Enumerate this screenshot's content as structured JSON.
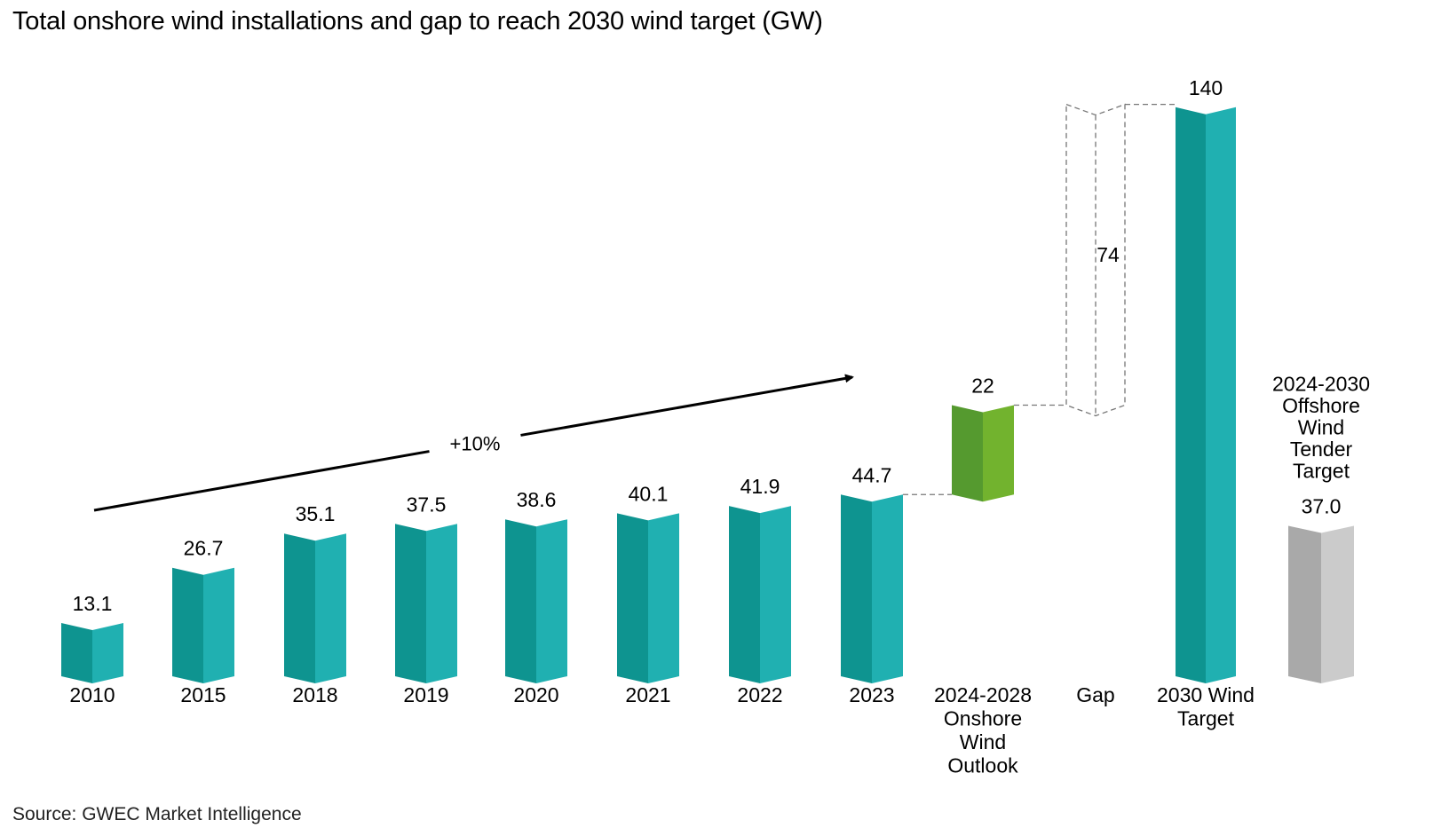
{
  "title": "Total onshore wind installations and gap to reach 2030 wind target (GW)",
  "source": "Source: GWEC Market Intelligence",
  "colors": {
    "teal_dark": "#0e9490",
    "teal_light": "#20b0b1",
    "green_dark": "#559a2f",
    "green_light": "#72b32e",
    "grey_dark": "#a9a9a9",
    "grey_light": "#cbcbcb",
    "gap_outline": "#777777"
  },
  "chart_data": {
    "type": "bar",
    "title": "Total onshore wind installations and gap to reach 2030 wind target (GW)",
    "unit": "GW",
    "categories": [
      "2010",
      "2015",
      "2018",
      "2019",
      "2020",
      "2021",
      "2022",
      "2023",
      "2024-2028 Onshore Wind Outlook",
      "Gap",
      "2030 Wind Target",
      "2024-2030 Offshore Wind Tender Target"
    ],
    "bars": [
      {
        "category": "2010",
        "label": [
          "2010"
        ],
        "value": 13.1,
        "value_label": "13.1",
        "kind": "installed"
      },
      {
        "category": "2015",
        "label": [
          "2015"
        ],
        "value": 26.7,
        "value_label": "26.7",
        "kind": "installed"
      },
      {
        "category": "2018",
        "label": [
          "2018"
        ],
        "value": 35.1,
        "value_label": "35.1",
        "kind": "installed"
      },
      {
        "category": "2019",
        "label": [
          "2019"
        ],
        "value": 37.5,
        "value_label": "37.5",
        "kind": "installed"
      },
      {
        "category": "2020",
        "label": [
          "2020"
        ],
        "value": 38.6,
        "value_label": "38.6",
        "kind": "installed"
      },
      {
        "category": "2021",
        "label": [
          "2021"
        ],
        "value": 40.1,
        "value_label": "40.1",
        "kind": "installed"
      },
      {
        "category": "2022",
        "label": [
          "2022"
        ],
        "value": 41.9,
        "value_label": "41.9",
        "kind": "installed"
      },
      {
        "category": "2023",
        "label": [
          "2023"
        ],
        "value": 44.7,
        "value_label": "44.7",
        "kind": "installed"
      },
      {
        "category": "2024-2028 Onshore Wind Outlook",
        "label": [
          "2024-2028",
          "Onshore",
          "Wind",
          "Outlook"
        ],
        "value": 22,
        "value_label": "22",
        "kind": "outlook",
        "base": 44.7
      },
      {
        "category": "Gap",
        "label": [
          "Gap"
        ],
        "value": 74,
        "value_label": "74",
        "kind": "gap",
        "base": 66.7
      },
      {
        "category": "2030 Wind Target",
        "label": [
          "2030 Wind",
          "Target"
        ],
        "value": 140,
        "value_label": "140",
        "kind": "target"
      },
      {
        "category": "2024-2030 Offshore Wind Tender Target",
        "label": [
          "2024-2030",
          "Offshore",
          "Wind",
          "Tender",
          "Target"
        ],
        "value": 37.0,
        "value_label": "37.0",
        "kind": "offshore"
      }
    ],
    "annotation": {
      "text": "+10%",
      "from": "2010",
      "to": "2023"
    },
    "grid": false,
    "legend": "none"
  }
}
